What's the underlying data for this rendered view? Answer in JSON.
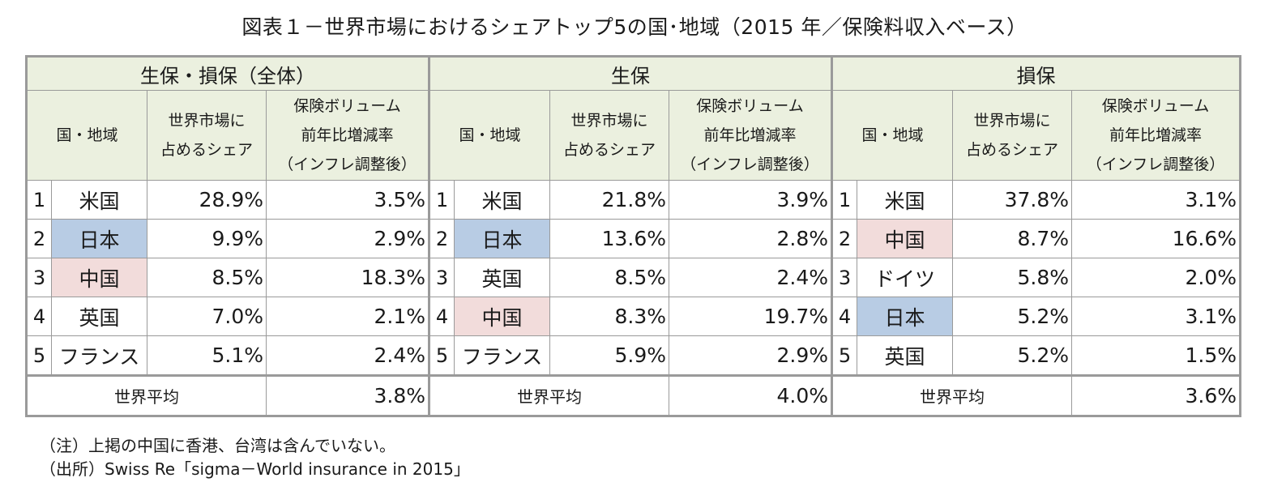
{
  "title": "図表１－世界市場におけるシェアトップ5の国･地域（2015 年／保険料収入ベース）",
  "sections": [
    {
      "name": "生保・損保（全体）",
      "headers": {
        "country": "国・地域",
        "share": [
          "世界市場に",
          "占めるシェア"
        ],
        "growth": [
          "保険ボリューム",
          "前年比増減率",
          "（インフレ調整後）"
        ]
      },
      "rows": [
        {
          "rank": "1",
          "country": "米国",
          "share": "28.9%",
          "growth": "3.5%",
          "highlight": ""
        },
        {
          "rank": "2",
          "country": "日本",
          "share": "9.9%",
          "growth": "2.9%",
          "highlight": "blue"
        },
        {
          "rank": "3",
          "country": "中国",
          "share": "8.5%",
          "growth": "18.3%",
          "highlight": "pink"
        },
        {
          "rank": "4",
          "country": "英国",
          "share": "7.0%",
          "growth": "2.1%",
          "highlight": ""
        },
        {
          "rank": "5",
          "country": "フランス",
          "share": "5.1%",
          "growth": "2.4%",
          "highlight": ""
        }
      ],
      "avg_label": "世界平均",
      "avg_value": "3.8%"
    },
    {
      "name": "生保",
      "headers": {
        "country": "国・地域",
        "share": [
          "世界市場に",
          "占めるシェア"
        ],
        "growth": [
          "保険ボリューム",
          "前年比増減率",
          "（インフレ調整後）"
        ]
      },
      "rows": [
        {
          "rank": "1",
          "country": "米国",
          "share": "21.8%",
          "growth": "3.9%",
          "highlight": ""
        },
        {
          "rank": "2",
          "country": "日本",
          "share": "13.6%",
          "growth": "2.8%",
          "highlight": "blue"
        },
        {
          "rank": "3",
          "country": "英国",
          "share": "8.5%",
          "growth": "2.4%",
          "highlight": ""
        },
        {
          "rank": "4",
          "country": "中国",
          "share": "8.3%",
          "growth": "19.7%",
          "highlight": "pink"
        },
        {
          "rank": "5",
          "country": "フランス",
          "share": "5.9%",
          "growth": "2.9%",
          "highlight": ""
        }
      ],
      "avg_label": "世界平均",
      "avg_value": "4.0%"
    },
    {
      "name": "損保",
      "headers": {
        "country": "国・地域",
        "share": [
          "世界市場に",
          "占めるシェア"
        ],
        "growth": [
          "保険ボリューム",
          "前年比増減率",
          "（インフレ調整後）"
        ]
      },
      "rows": [
        {
          "rank": "1",
          "country": "米国",
          "share": "37.8%",
          "growth": "3.1%",
          "highlight": ""
        },
        {
          "rank": "2",
          "country": "中国",
          "share": "8.7%",
          "growth": "16.6%",
          "highlight": "pink"
        },
        {
          "rank": "3",
          "country": "ドイツ",
          "share": "5.8%",
          "growth": "2.0%",
          "highlight": ""
        },
        {
          "rank": "4",
          "country": "日本",
          "share": "5.2%",
          "growth": "3.1%",
          "highlight": "blue"
        },
        {
          "rank": "5",
          "country": "英国",
          "share": "5.2%",
          "growth": "1.5%",
          "highlight": ""
        }
      ],
      "avg_label": "世界平均",
      "avg_value": "3.6%"
    }
  ],
  "notes": [
    "（注）上掲の中国に香港、台湾は含んでいない。",
    "（出所）Swiss Re「sigma－World insurance in 2015」"
  ],
  "colors": {
    "header_bg": "#ebf0df",
    "japan_highlight": "#b8cce4",
    "china_highlight": "#f2dcdb",
    "border": "#9a9a9a"
  }
}
